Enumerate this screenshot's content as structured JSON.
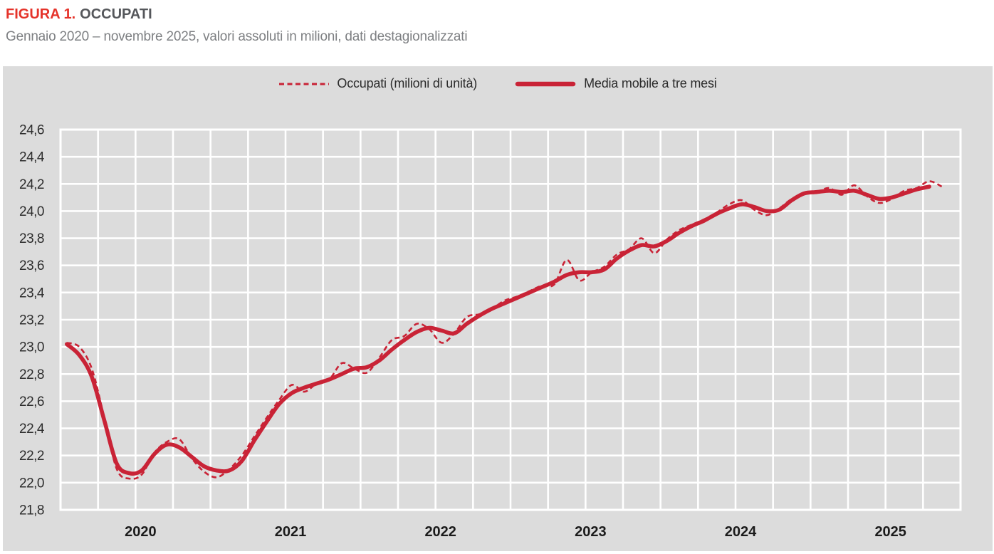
{
  "header": {
    "figure_label": "FIGURA 1.",
    "figure_title": "OCCUPATI",
    "subtitle": "Gennaio 2020 – novembre 2025, valori assoluti in milioni, dati destagionalizzati"
  },
  "legend": {
    "dashed_label": "Occupati (milioni di unità)",
    "solid_label": "Media mobile a tre mesi"
  },
  "colors": {
    "series_red": "#c92336",
    "figure_label_red": "#e5332a",
    "title_gray": "#55575b",
    "subtitle_gray": "#7e8083",
    "panel_bg": "#dcdcdc",
    "grid_white": "#ffffff"
  },
  "chart_data": {
    "type": "line",
    "title": "FIGURA 1. OCCUPATI",
    "subtitle": "Gennaio 2020 – novembre 2025, valori assoluti in milioni, dati destagionalizzati",
    "unit": "milioni di persone",
    "x_start": "2020-01",
    "x_end": "2025-11",
    "x_months_span": 72,
    "x_tick_labels": [
      "2020",
      "2021",
      "2022",
      "2023",
      "2024",
      "2025"
    ],
    "ylim": [
      21.8,
      24.6
    ],
    "y_tick_step": 0.2,
    "y_tick_labels": [
      "21,8",
      "22,0",
      "22,2",
      "22,4",
      "22,6",
      "22,8",
      "23,0",
      "23,2",
      "23,4",
      "23,6",
      "23,8",
      "24,0",
      "24,2",
      "24,4",
      "24,6"
    ],
    "grid": "white gridlines on gray: horizontal every 0.2, vertical every quarter",
    "legend_position": "top-center",
    "series": [
      {
        "name": "Occupati (milioni di unità)",
        "style": "dashed",
        "frequency": "monthly",
        "first_month": "2020-01",
        "values": [
          23.03,
          23.0,
          22.84,
          22.48,
          22.1,
          22.03,
          22.06,
          22.22,
          22.3,
          22.32,
          22.18,
          22.08,
          22.04,
          22.1,
          22.2,
          22.34,
          22.48,
          22.61,
          22.72,
          22.67,
          22.73,
          22.76,
          22.88,
          22.84,
          22.81,
          22.92,
          23.05,
          23.08,
          23.17,
          23.13,
          23.03,
          23.1,
          23.22,
          23.24,
          23.28,
          23.34,
          23.37,
          23.41,
          23.45,
          23.46,
          23.64,
          23.49,
          23.55,
          23.59,
          23.68,
          23.72,
          23.8,
          23.69,
          23.79,
          23.86,
          23.9,
          23.94,
          23.99,
          24.05,
          24.08,
          24.01,
          23.97,
          24.02,
          24.09,
          24.13,
          24.14,
          24.17,
          24.12,
          24.19,
          24.11,
          24.06,
          24.09,
          24.15,
          24.17,
          24.22,
          24.18
        ]
      },
      {
        "name": "Media mobile a tre mesi",
        "style": "solid",
        "frequency": "monthly",
        "first_month": "2020-01",
        "values": [
          23.02,
          22.94,
          22.78,
          22.46,
          22.14,
          22.07,
          22.09,
          22.21,
          22.28,
          22.26,
          22.19,
          22.12,
          22.09,
          22.09,
          22.16,
          22.31,
          22.45,
          22.58,
          22.66,
          22.7,
          22.73,
          22.76,
          22.8,
          22.84,
          22.85,
          22.9,
          22.98,
          23.05,
          23.11,
          23.14,
          23.12,
          23.1,
          23.17,
          23.23,
          23.28,
          23.32,
          23.36,
          23.4,
          23.44,
          23.48,
          23.53,
          23.55,
          23.55,
          23.57,
          23.65,
          23.71,
          23.75,
          23.74,
          23.78,
          23.84,
          23.89,
          23.93,
          23.98,
          24.02,
          24.05,
          24.03,
          24.0,
          24.01,
          24.08,
          24.13,
          24.14,
          24.15,
          24.14,
          24.15,
          24.12,
          24.09,
          24.1,
          24.13,
          24.16,
          24.18
        ]
      }
    ]
  }
}
